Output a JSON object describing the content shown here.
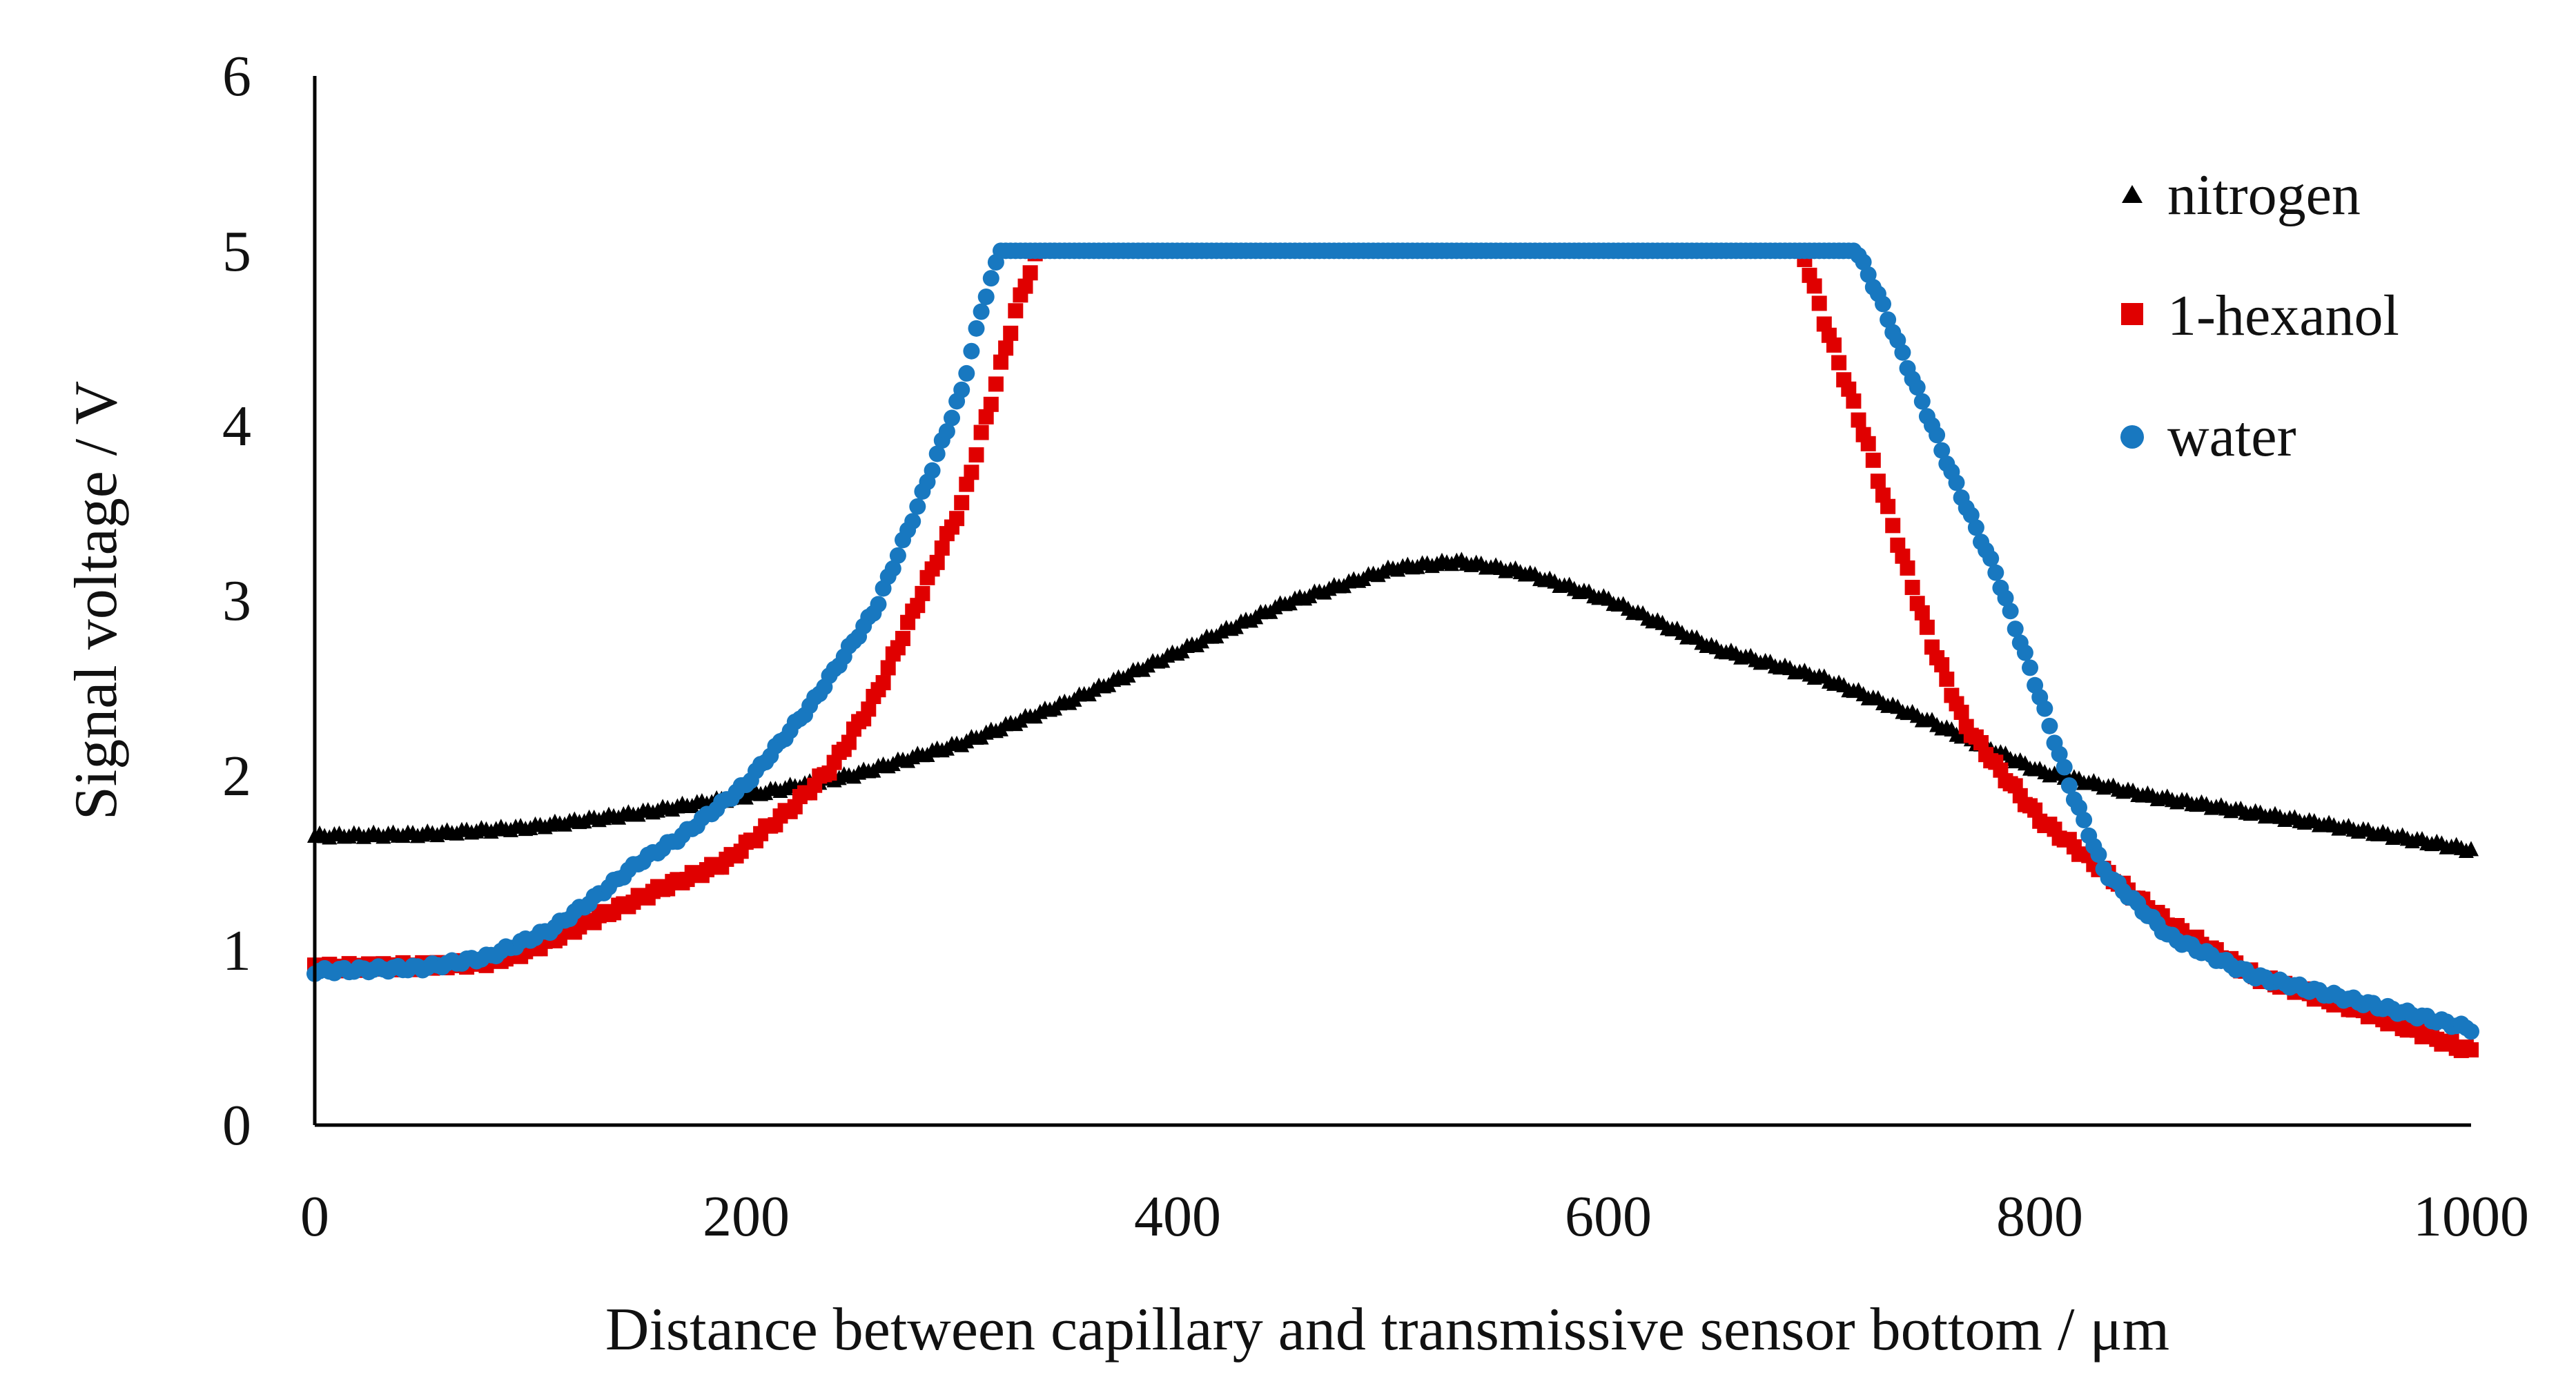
{
  "chart_data": {
    "type": "scatter",
    "title": "",
    "xlabel": "Distance between capillary and transmissive sensor bottom / μm",
    "ylabel": "Signal voltage / V",
    "xlim": [
      0,
      1000
    ],
    "ylim": [
      0,
      6
    ],
    "x_ticks": [
      "0",
      "200",
      "400",
      "600",
      "800",
      "1000"
    ],
    "y_ticks": [
      "0",
      "1",
      "2",
      "3",
      "4",
      "5",
      "6"
    ],
    "grid": false,
    "legend_position": "top-right",
    "series": [
      {
        "name": "nitrogen",
        "marker": "triangle",
        "color": "#000000",
        "points": [
          [
            0,
            1.65
          ],
          [
            50,
            1.66
          ],
          [
            100,
            1.7
          ],
          [
            150,
            1.78
          ],
          [
            200,
            1.88
          ],
          [
            250,
            2.0
          ],
          [
            300,
            2.18
          ],
          [
            350,
            2.42
          ],
          [
            400,
            2.7
          ],
          [
            450,
            2.98
          ],
          [
            500,
            3.18
          ],
          [
            530,
            3.22
          ],
          [
            560,
            3.16
          ],
          [
            600,
            3.0
          ],
          [
            650,
            2.72
          ],
          [
            700,
            2.55
          ],
          [
            750,
            2.3
          ],
          [
            800,
            2.02
          ],
          [
            850,
            1.88
          ],
          [
            900,
            1.78
          ],
          [
            950,
            1.68
          ],
          [
            1000,
            1.57
          ]
        ]
      },
      {
        "name": "1-hexanol",
        "marker": "square",
        "color": "#e00000",
        "points": [
          [
            0,
            0.9
          ],
          [
            50,
            0.91
          ],
          [
            80,
            0.93
          ],
          [
            100,
            1.0
          ],
          [
            130,
            1.18
          ],
          [
            160,
            1.35
          ],
          [
            190,
            1.5
          ],
          [
            220,
            1.8
          ],
          [
            240,
            2.05
          ],
          [
            260,
            2.45
          ],
          [
            280,
            3.0
          ],
          [
            300,
            3.55
          ],
          [
            315,
            4.2
          ],
          [
            325,
            4.65
          ],
          [
            335,
            5.0
          ],
          [
            690,
            5.0
          ],
          [
            700,
            4.6
          ],
          [
            720,
            3.9
          ],
          [
            735,
            3.3
          ],
          [
            750,
            2.75
          ],
          [
            765,
            2.3
          ],
          [
            780,
            2.05
          ],
          [
            800,
            1.75
          ],
          [
            830,
            1.45
          ],
          [
            860,
            1.15
          ],
          [
            900,
            0.85
          ],
          [
            950,
            0.65
          ],
          [
            1000,
            0.42
          ]
        ]
      },
      {
        "name": "water",
        "marker": "circle",
        "color": "#1878c0",
        "points": [
          [
            0,
            0.88
          ],
          [
            50,
            0.9
          ],
          [
            80,
            0.96
          ],
          [
            110,
            1.12
          ],
          [
            130,
            1.3
          ],
          [
            150,
            1.5
          ],
          [
            170,
            1.65
          ],
          [
            200,
            1.95
          ],
          [
            230,
            2.4
          ],
          [
            260,
            2.95
          ],
          [
            280,
            3.55
          ],
          [
            300,
            4.2
          ],
          [
            310,
            4.7
          ],
          [
            318,
            5.0
          ],
          [
            715,
            5.0
          ],
          [
            725,
            4.75
          ],
          [
            740,
            4.3
          ],
          [
            760,
            3.7
          ],
          [
            780,
            3.15
          ],
          [
            800,
            2.45
          ],
          [
            815,
            1.9
          ],
          [
            830,
            1.45
          ],
          [
            860,
            1.08
          ],
          [
            900,
            0.85
          ],
          [
            950,
            0.7
          ],
          [
            1000,
            0.55
          ]
        ]
      }
    ]
  }
}
